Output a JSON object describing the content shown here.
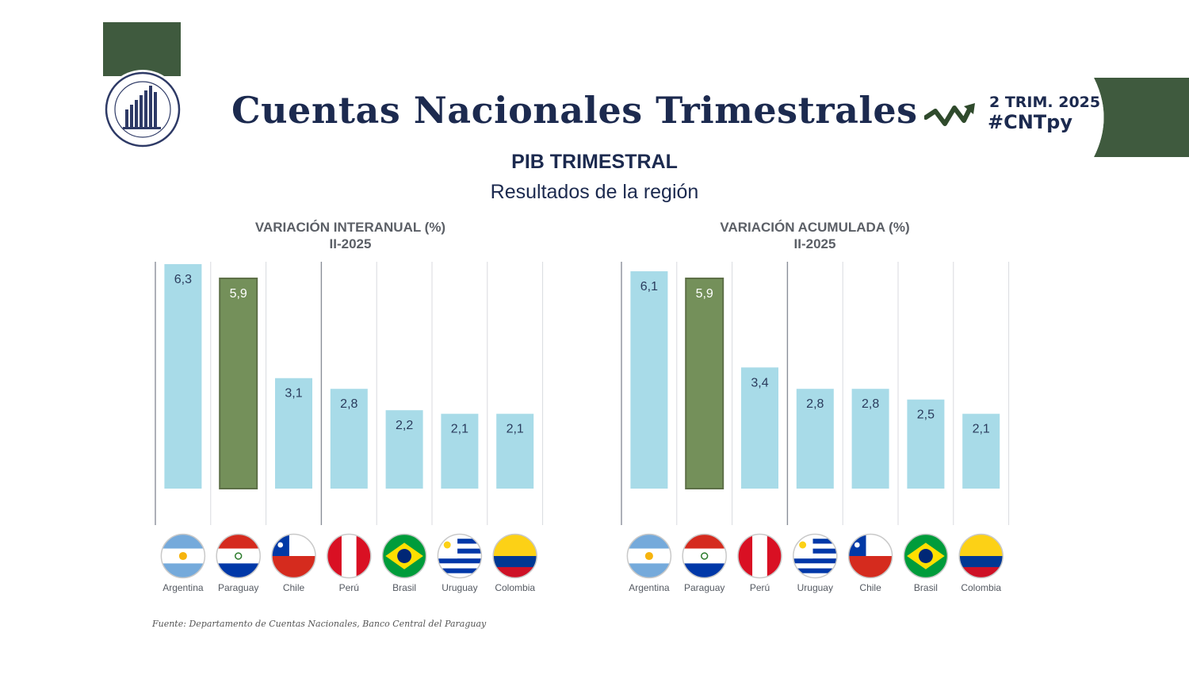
{
  "header": {
    "title": "Cuentas Nacionales Trimestrales",
    "period_badge": "2 TRIM. 2025",
    "hashtag": "#CNTpy",
    "subtitle": "PIB TRIMESTRAL",
    "subtitle2": "Resultados de la región"
  },
  "colors": {
    "brand_green": "#3f5a3e",
    "navy": "#1c2a4f",
    "bar_default": "#a8dbe8",
    "bar_highlight": "#74905a"
  },
  "chart_data": [
    {
      "type": "bar",
      "title": "VARIACIÓN INTERANUAL (%)",
      "subtitle": "II-2025",
      "categories": [
        "Argentina",
        "Paraguay",
        "Chile",
        "Perú",
        "Brasil",
        "Uruguay",
        "Colombia"
      ],
      "value_labels": [
        "6,3",
        "5,9",
        "3,1",
        "2,8",
        "2,2",
        "2,1",
        "2,1"
      ],
      "values": [
        6.3,
        5.9,
        3.1,
        2.8,
        2.2,
        2.1,
        2.1
      ],
      "highlight": "Paraguay",
      "ylim": [
        0,
        6.3
      ],
      "grid": "vertical separators"
    },
    {
      "type": "bar",
      "title": "VARIACIÓN ACUMULADA (%)",
      "subtitle": "II-2025",
      "categories": [
        "Argentina",
        "Paraguay",
        "Perú",
        "Uruguay",
        "Chile",
        "Brasil",
        "Colombia"
      ],
      "value_labels": [
        "6,1",
        "5,9",
        "3,4",
        "2,8",
        "2,8",
        "2,5",
        "2,1"
      ],
      "values": [
        6.1,
        5.9,
        3.4,
        2.8,
        2.8,
        2.5,
        2.1
      ],
      "highlight": "Paraguay",
      "ylim": [
        0,
        6.3
      ],
      "grid": "vertical separators"
    }
  ],
  "flags": {
    "Argentina": "argentina-flag-icon",
    "Paraguay": "paraguay-flag-icon",
    "Chile": "chile-flag-icon",
    "Perú": "peru-flag-icon",
    "Brasil": "brasil-flag-icon",
    "Uruguay": "uruguay-flag-icon",
    "Colombia": "colombia-flag-icon"
  },
  "source": "Fuente: Departamento de Cuentas Nacionales, Banco Central del Paraguay"
}
